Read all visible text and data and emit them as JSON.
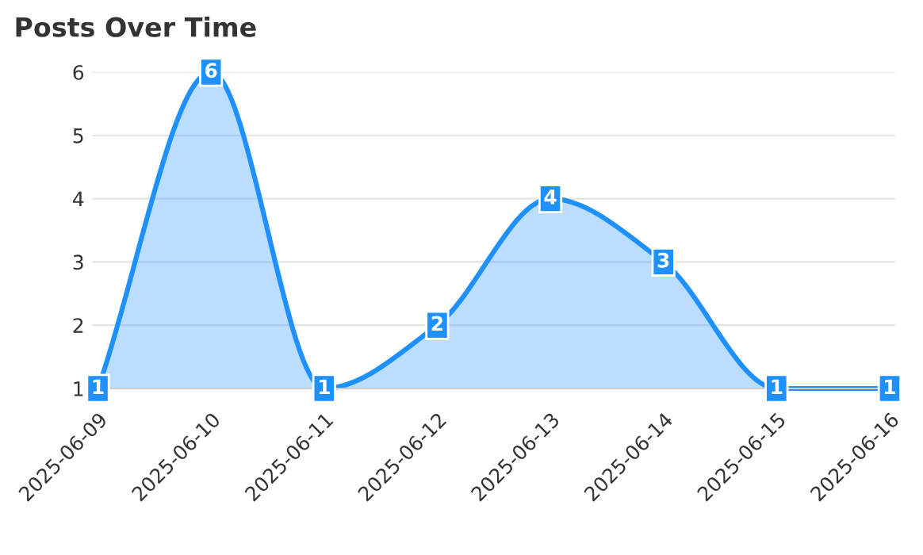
{
  "chart_data": {
    "type": "area",
    "title": "Posts Over Time",
    "categories": [
      "2025-06-09",
      "2025-06-10",
      "2025-06-11",
      "2025-06-12",
      "2025-06-13",
      "2025-06-14",
      "2025-06-15",
      "2025-06-16"
    ],
    "series": [
      {
        "color": "#1e90ff",
        "values": [
          1,
          6,
          1,
          2,
          4,
          3,
          1,
          1
        ]
      }
    ],
    "ylim": [
      1,
      6
    ],
    "yticks": [
      1,
      2,
      3,
      4,
      5,
      6
    ],
    "grid": "y",
    "data_labels": true,
    "marker": "square"
  }
}
